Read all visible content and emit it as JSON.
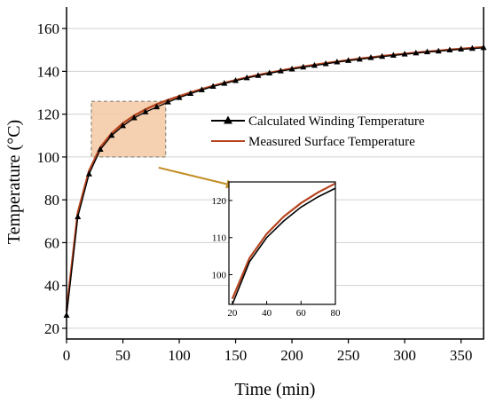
{
  "chart_data": {
    "type": "line",
    "title": "",
    "xlabel": "Time (min)",
    "ylabel": "Temperature (°C)",
    "xlim": [
      0,
      370
    ],
    "ylim": [
      15,
      170
    ],
    "xticks": [
      0,
      50,
      100,
      150,
      200,
      250,
      300,
      350
    ],
    "yticks": [
      20,
      40,
      60,
      80,
      100,
      120,
      140,
      160
    ],
    "grid": "horizontal",
    "legend_position": "center-right",
    "series": [
      {
        "name": "Calculated Winding Temperature",
        "color": "#000000",
        "marker": "triangle",
        "x": [
          0,
          10,
          20,
          30,
          40,
          50,
          60,
          70,
          80,
          90,
          100,
          110,
          120,
          130,
          140,
          150,
          160,
          170,
          180,
          190,
          200,
          210,
          220,
          230,
          240,
          250,
          260,
          270,
          280,
          290,
          300,
          310,
          320,
          330,
          340,
          350,
          360,
          370
        ],
        "y": [
          26,
          72,
          92,
          103.5,
          110,
          114.5,
          118.2,
          121,
          123.3,
          125.6,
          127.7,
          129.6,
          131.3,
          132.9,
          134.3,
          135.6,
          136.9,
          138,
          139.1,
          140.1,
          141,
          141.9,
          142.7,
          143.5,
          144.3,
          145,
          145.6,
          146.3,
          146.9,
          147.4,
          148,
          148.5,
          149,
          149.4,
          149.9,
          150.3,
          150.6,
          151
        ]
      },
      {
        "name": "Measured Surface Temperature",
        "color": "#b5441e",
        "marker": "none",
        "x": [
          0,
          10,
          20,
          30,
          40,
          50,
          60,
          70,
          80,
          90,
          100,
          110,
          120,
          130,
          140,
          150,
          160,
          170,
          180,
          190,
          200,
          210,
          220,
          230,
          240,
          250,
          260,
          270,
          280,
          290,
          300,
          310,
          320,
          330,
          340,
          350,
          360,
          370
        ],
        "y": [
          28,
          74,
          93.5,
          104.5,
          111,
          115.7,
          119.3,
          122.2,
          124.6,
          126.6,
          128.4,
          130.1,
          131.7,
          133.2,
          134.6,
          135.9,
          137.1,
          138.3,
          139.3,
          140.3,
          141.3,
          142.2,
          143,
          143.8,
          144.5,
          145.2,
          145.9,
          146.5,
          147.1,
          147.7,
          148.2,
          148.7,
          149.2,
          149.6,
          150.1,
          150.5,
          150.9,
          151.3
        ]
      }
    ],
    "highlight_box": {
      "x": [
        22,
        88
      ],
      "y": [
        100,
        126
      ]
    },
    "inset": {
      "xlim": [
        18,
        80
      ],
      "ylim": [
        92,
        125
      ],
      "xticks": [
        20,
        40,
        60,
        80
      ],
      "yticks": [
        100,
        110,
        120
      ]
    }
  }
}
